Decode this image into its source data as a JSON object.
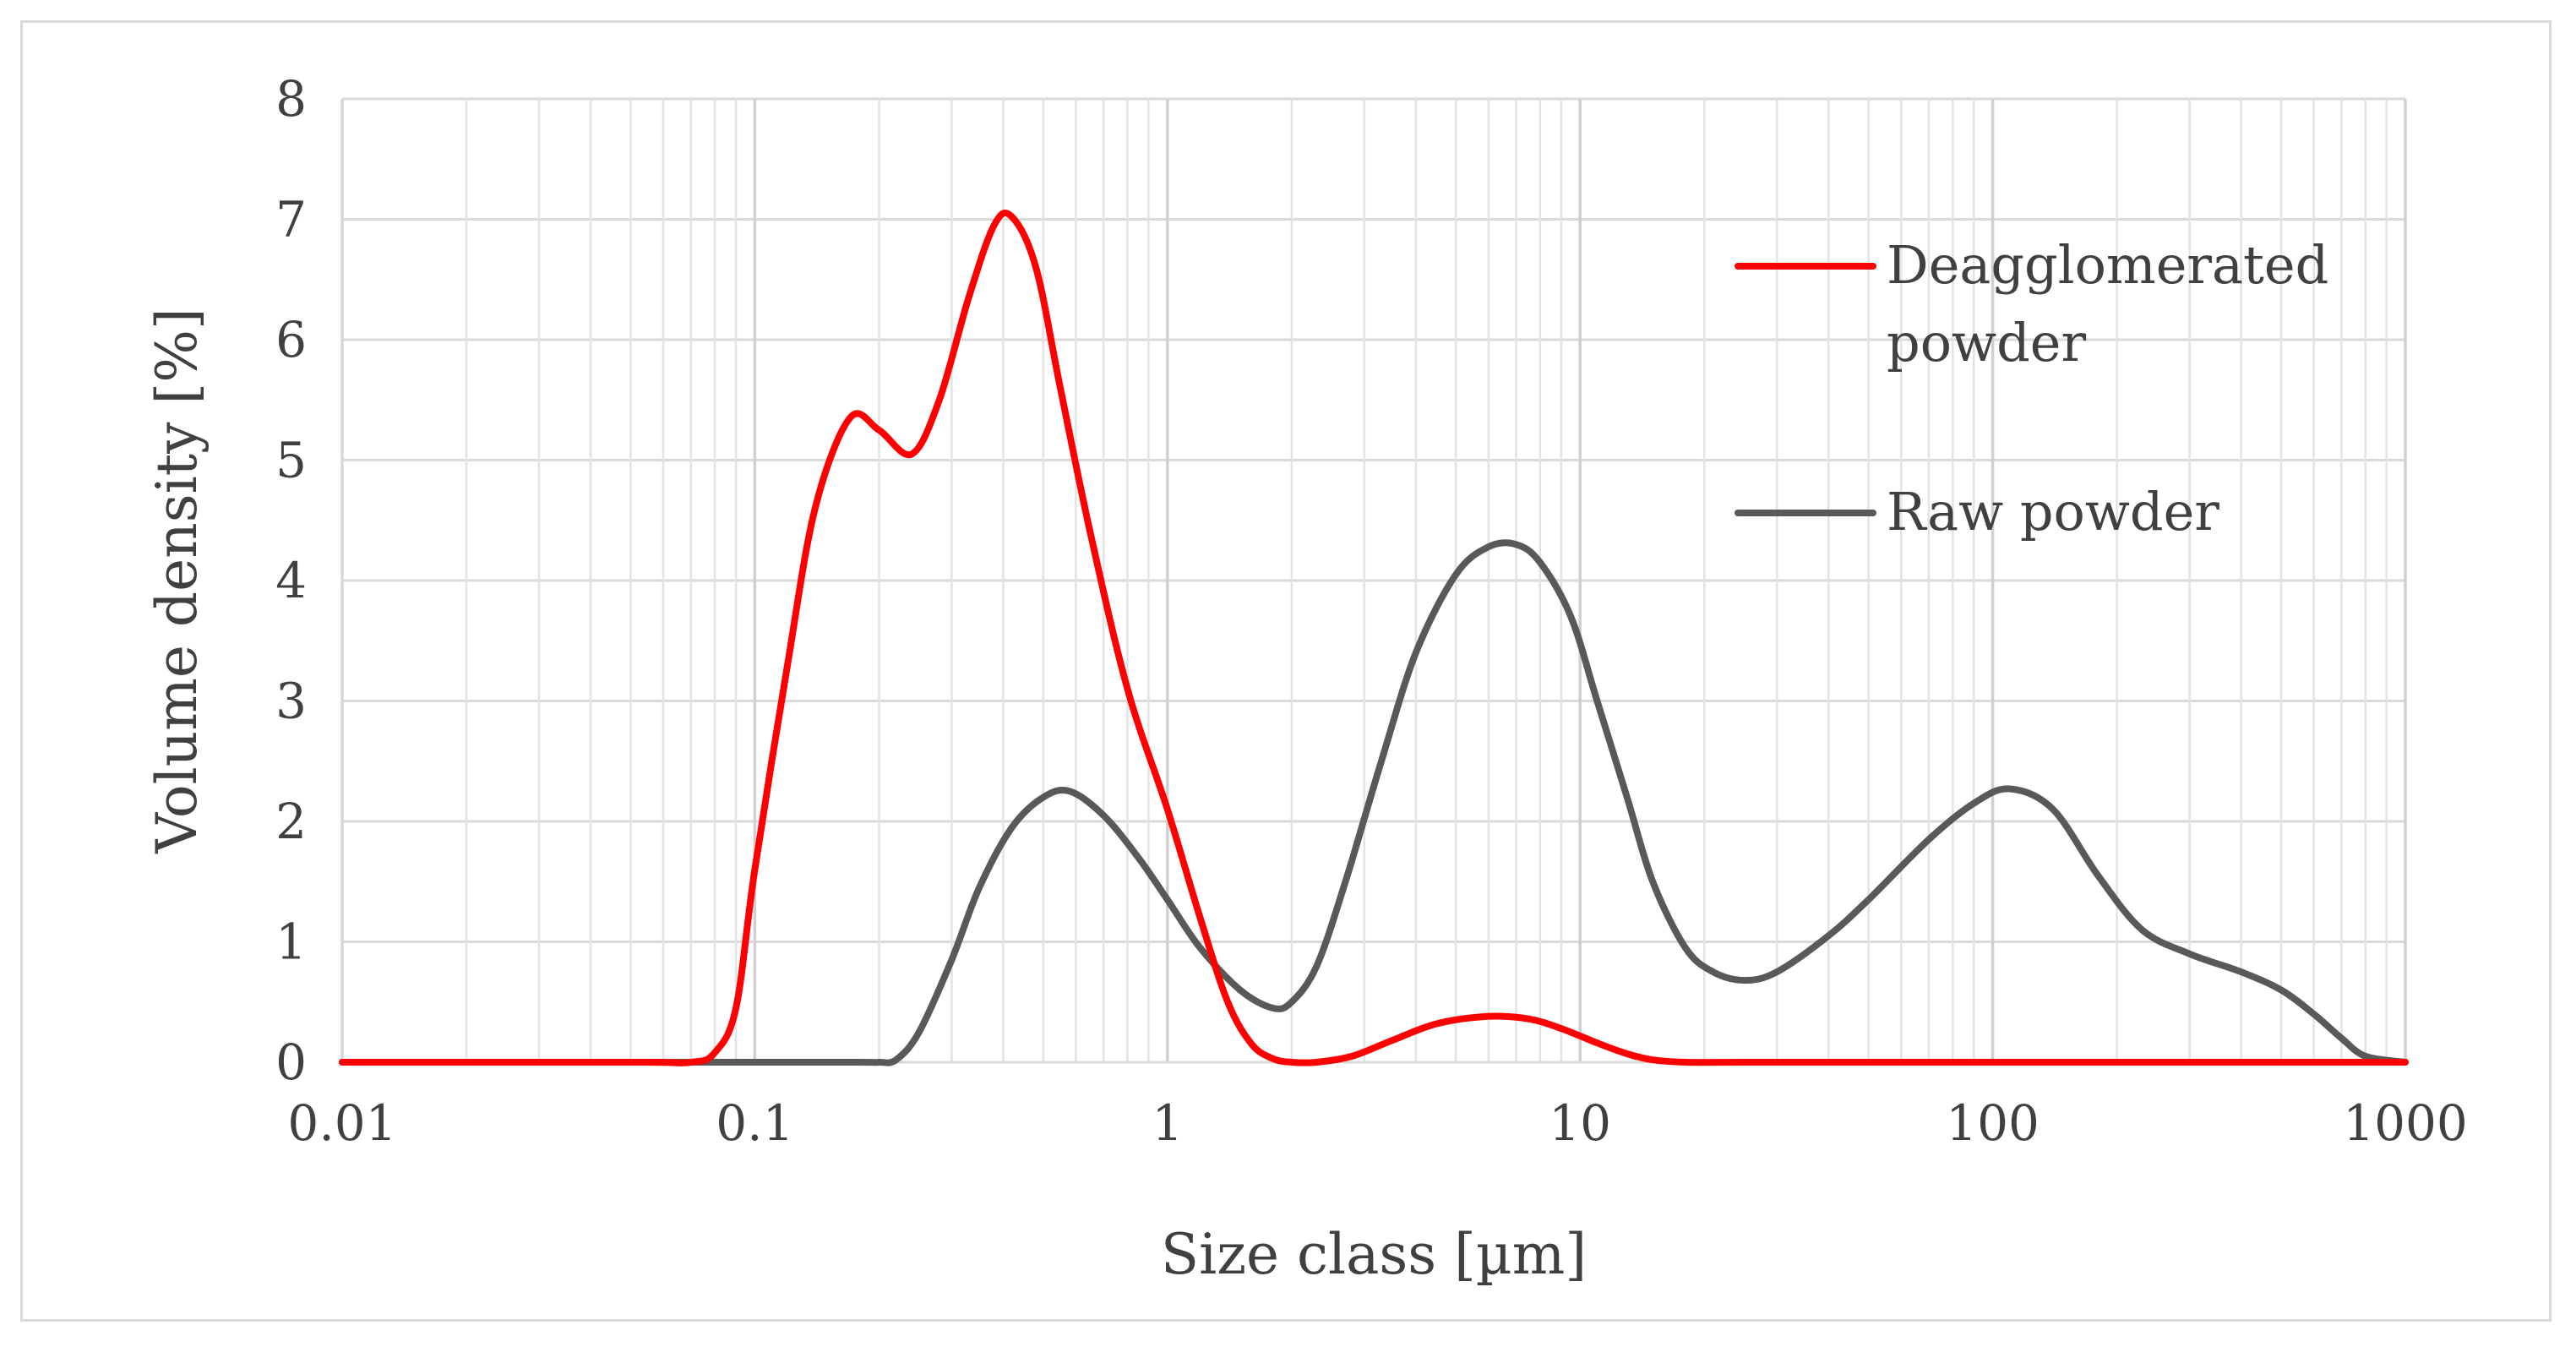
{
  "chart_data": {
    "type": "line",
    "title": "",
    "xlabel": "Size class [µm]",
    "ylabel": "Volume density [%]",
    "x_scale": "log",
    "xlim": [
      0.01,
      1000
    ],
    "ylim": [
      0,
      8
    ],
    "x_ticks": [
      0.01,
      0.1,
      1,
      10,
      100,
      1000
    ],
    "x_tick_labels": [
      "0.01",
      "0.1",
      "1",
      "10",
      "100",
      "1000"
    ],
    "y_ticks": [
      0,
      1,
      2,
      3,
      4,
      5,
      6,
      7,
      8
    ],
    "y_tick_labels": [
      "0",
      "1",
      "2",
      "3",
      "4",
      "5",
      "6",
      "7",
      "8"
    ],
    "grid": true,
    "legend_position": "top-right",
    "series": [
      {
        "name": "Deagglomerated powder",
        "color": "#ff0000",
        "x": [
          0.01,
          0.05,
          0.07,
          0.08,
          0.09,
          0.1,
          0.12,
          0.14,
          0.17,
          0.2,
          0.24,
          0.28,
          0.33,
          0.38,
          0.42,
          0.48,
          0.55,
          0.65,
          0.8,
          1.0,
          1.2,
          1.4,
          1.6,
          1.8,
          2.0,
          2.3,
          2.8,
          3.5,
          4.5,
          6.0,
          7.5,
          9.0,
          11,
          13,
          15,
          18,
          25,
          50,
          100,
          300,
          1000
        ],
        "y": [
          0,
          0,
          0,
          0.08,
          0.45,
          1.6,
          3.3,
          4.6,
          5.35,
          5.25,
          5.05,
          5.5,
          6.35,
          6.95,
          7.02,
          6.6,
          5.6,
          4.4,
          3.1,
          2.1,
          1.2,
          0.5,
          0.15,
          0.03,
          0,
          0,
          0.05,
          0.18,
          0.32,
          0.38,
          0.36,
          0.28,
          0.16,
          0.07,
          0.02,
          0,
          0,
          0,
          0,
          0,
          0
        ]
      },
      {
        "name": "Raw powder",
        "color": "#595959",
        "x": [
          0.01,
          0.1,
          0.18,
          0.2,
          0.22,
          0.25,
          0.3,
          0.35,
          0.42,
          0.5,
          0.58,
          0.7,
          0.85,
          1.0,
          1.2,
          1.5,
          1.8,
          2.0,
          2.3,
          2.7,
          3.3,
          4.0,
          5.0,
          6.0,
          7.0,
          8.0,
          9.5,
          11,
          13,
          15,
          18,
          21,
          25,
          30,
          40,
          50,
          70,
          90,
          110,
          140,
          180,
          230,
          300,
          400,
          500,
          600,
          700,
          800,
          1000
        ],
        "y": [
          0,
          0,
          0,
          0,
          0.02,
          0.25,
          0.85,
          1.45,
          1.95,
          2.2,
          2.25,
          2.05,
          1.7,
          1.35,
          0.95,
          0.6,
          0.45,
          0.5,
          0.8,
          1.5,
          2.5,
          3.4,
          4.05,
          4.28,
          4.3,
          4.15,
          3.7,
          3.0,
          2.2,
          1.5,
          0.95,
          0.75,
          0.68,
          0.75,
          1.05,
          1.35,
          1.85,
          2.15,
          2.27,
          2.1,
          1.55,
          1.1,
          0.9,
          0.75,
          0.6,
          0.4,
          0.2,
          0.05,
          0
        ]
      }
    ]
  }
}
